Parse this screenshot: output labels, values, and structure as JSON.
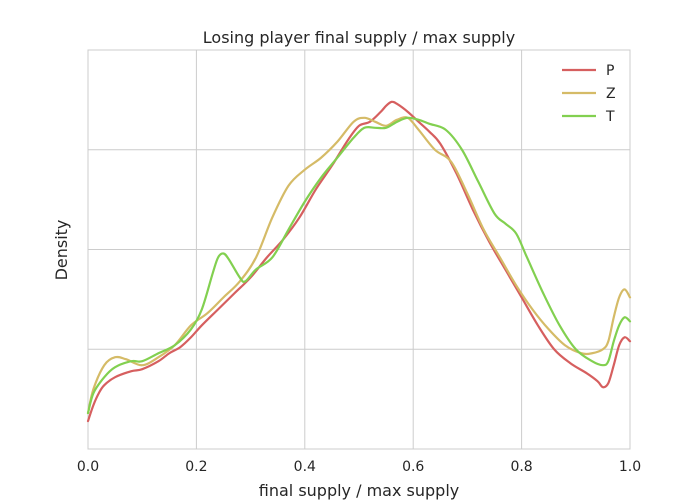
{
  "chart_data": {
    "type": "line",
    "title": "Losing player final supply / max supply",
    "xlabel": "final supply / max supply",
    "ylabel": "Density",
    "xlim": [
      0.0,
      1.0
    ],
    "ylim": [
      0.0,
      2.0
    ],
    "x_ticks": [
      "0.0",
      "0.2",
      "0.4",
      "0.6",
      "0.8",
      "1.0"
    ],
    "y_ticks_shown": false,
    "grid": true,
    "legend_position": "top-right",
    "series": [
      {
        "name": "P",
        "color": "#d65f5f",
        "points": [
          [
            0.0,
            0.14
          ],
          [
            0.01,
            0.22
          ],
          [
            0.02,
            0.28
          ],
          [
            0.03,
            0.32
          ],
          [
            0.05,
            0.36
          ],
          [
            0.08,
            0.39
          ],
          [
            0.1,
            0.4
          ],
          [
            0.13,
            0.44
          ],
          [
            0.15,
            0.48
          ],
          [
            0.17,
            0.51
          ],
          [
            0.19,
            0.56
          ],
          [
            0.21,
            0.62
          ],
          [
            0.24,
            0.7
          ],
          [
            0.27,
            0.78
          ],
          [
            0.3,
            0.86
          ],
          [
            0.33,
            0.96
          ],
          [
            0.36,
            1.05
          ],
          [
            0.39,
            1.16
          ],
          [
            0.42,
            1.3
          ],
          [
            0.45,
            1.42
          ],
          [
            0.48,
            1.55
          ],
          [
            0.5,
            1.62
          ],
          [
            0.52,
            1.64
          ],
          [
            0.54,
            1.69
          ],
          [
            0.55,
            1.72
          ],
          [
            0.56,
            1.74
          ],
          [
            0.57,
            1.73
          ],
          [
            0.59,
            1.69
          ],
          [
            0.61,
            1.64
          ],
          [
            0.63,
            1.59
          ],
          [
            0.65,
            1.53
          ],
          [
            0.68,
            1.38
          ],
          [
            0.71,
            1.2
          ],
          [
            0.74,
            1.04
          ],
          [
            0.77,
            0.9
          ],
          [
            0.8,
            0.76
          ],
          [
            0.83,
            0.62
          ],
          [
            0.86,
            0.5
          ],
          [
            0.89,
            0.43
          ],
          [
            0.92,
            0.38
          ],
          [
            0.94,
            0.34
          ],
          [
            0.95,
            0.31
          ],
          [
            0.96,
            0.33
          ],
          [
            0.97,
            0.42
          ],
          [
            0.98,
            0.52
          ],
          [
            0.99,
            0.56
          ],
          [
            1.0,
            0.54
          ]
        ]
      },
      {
        "name": "Z",
        "color": "#d5bb67",
        "points": [
          [
            0.0,
            0.18
          ],
          [
            0.01,
            0.3
          ],
          [
            0.03,
            0.42
          ],
          [
            0.05,
            0.46
          ],
          [
            0.07,
            0.45
          ],
          [
            0.1,
            0.42
          ],
          [
            0.13,
            0.46
          ],
          [
            0.16,
            0.52
          ],
          [
            0.19,
            0.62
          ],
          [
            0.22,
            0.68
          ],
          [
            0.25,
            0.76
          ],
          [
            0.28,
            0.84
          ],
          [
            0.31,
            0.96
          ],
          [
            0.34,
            1.16
          ],
          [
            0.37,
            1.32
          ],
          [
            0.4,
            1.4
          ],
          [
            0.43,
            1.46
          ],
          [
            0.46,
            1.54
          ],
          [
            0.49,
            1.64
          ],
          [
            0.51,
            1.66
          ],
          [
            0.53,
            1.64
          ],
          [
            0.55,
            1.62
          ],
          [
            0.57,
            1.65
          ],
          [
            0.59,
            1.66
          ],
          [
            0.61,
            1.6
          ],
          [
            0.64,
            1.5
          ],
          [
            0.67,
            1.44
          ],
          [
            0.7,
            1.28
          ],
          [
            0.73,
            1.1
          ],
          [
            0.76,
            0.96
          ],
          [
            0.79,
            0.82
          ],
          [
            0.82,
            0.7
          ],
          [
            0.85,
            0.6
          ],
          [
            0.88,
            0.52
          ],
          [
            0.91,
            0.48
          ],
          [
            0.93,
            0.48
          ],
          [
            0.95,
            0.5
          ],
          [
            0.96,
            0.54
          ],
          [
            0.97,
            0.66
          ],
          [
            0.98,
            0.76
          ],
          [
            0.99,
            0.8
          ],
          [
            1.0,
            0.76
          ]
        ]
      },
      {
        "name": "T",
        "color": "#82d050",
        "points": [
          [
            0.0,
            0.18
          ],
          [
            0.01,
            0.28
          ],
          [
            0.03,
            0.36
          ],
          [
            0.05,
            0.41
          ],
          [
            0.08,
            0.44
          ],
          [
            0.1,
            0.44
          ],
          [
            0.13,
            0.48
          ],
          [
            0.16,
            0.52
          ],
          [
            0.19,
            0.6
          ],
          [
            0.21,
            0.7
          ],
          [
            0.23,
            0.88
          ],
          [
            0.24,
            0.96
          ],
          [
            0.25,
            0.98
          ],
          [
            0.26,
            0.95
          ],
          [
            0.28,
            0.86
          ],
          [
            0.29,
            0.84
          ],
          [
            0.31,
            0.9
          ],
          [
            0.34,
            0.96
          ],
          [
            0.37,
            1.1
          ],
          [
            0.4,
            1.24
          ],
          [
            0.43,
            1.36
          ],
          [
            0.46,
            1.46
          ],
          [
            0.49,
            1.56
          ],
          [
            0.51,
            1.61
          ],
          [
            0.53,
            1.61
          ],
          [
            0.55,
            1.61
          ],
          [
            0.57,
            1.64
          ],
          [
            0.59,
            1.66
          ],
          [
            0.61,
            1.65
          ],
          [
            0.63,
            1.63
          ],
          [
            0.66,
            1.6
          ],
          [
            0.69,
            1.5
          ],
          [
            0.72,
            1.34
          ],
          [
            0.75,
            1.18
          ],
          [
            0.77,
            1.13
          ],
          [
            0.79,
            1.08
          ],
          [
            0.81,
            0.96
          ],
          [
            0.84,
            0.78
          ],
          [
            0.87,
            0.62
          ],
          [
            0.9,
            0.5
          ],
          [
            0.93,
            0.44
          ],
          [
            0.95,
            0.42
          ],
          [
            0.96,
            0.44
          ],
          [
            0.97,
            0.54
          ],
          [
            0.98,
            0.62
          ],
          [
            0.99,
            0.66
          ],
          [
            1.0,
            0.64
          ]
        ]
      }
    ]
  }
}
